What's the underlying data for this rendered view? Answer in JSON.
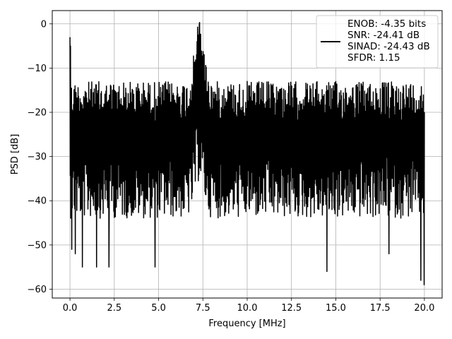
{
  "chart_data": {
    "type": "line",
    "title": "",
    "xlabel": "Frequency [MHz]",
    "ylabel": "PSD [dB]",
    "xlim": [
      -1.0,
      21.0
    ],
    "ylim": [
      -62,
      3
    ],
    "xticks": [
      0.0,
      2.5,
      5.0,
      7.5,
      10.0,
      12.5,
      15.0,
      17.5,
      20.0
    ],
    "xtick_labels": [
      "0.0",
      "2.5",
      "5.0",
      "7.5",
      "10.0",
      "12.5",
      "15.0",
      "17.5",
      "20.0"
    ],
    "yticks": [
      0,
      -10,
      -20,
      -30,
      -40,
      -50,
      -60
    ],
    "ytick_labels": [
      "0",
      "−10",
      "−20",
      "−30",
      "−40",
      "−50",
      "−60"
    ],
    "grid": true,
    "legend_position": "top-right",
    "legend_entries": [
      "ENOB: -4.35 bits",
      "SNR: -24.41 dB",
      "SINAD: -24.43 dB",
      "SFDR: 1.15"
    ],
    "series": [
      {
        "color": "#000000",
        "peak": {
          "x": 7.3,
          "y": 0
        },
        "start_spike": {
          "x": 0.0,
          "y": -3
        },
        "upper_envelope_db": -15,
        "mean_db": -25,
        "lower_envelope_db": -42,
        "minimum": {
          "x": 20.0,
          "y": -59
        },
        "notable_dips": [
          {
            "x": 0.1,
            "y": -51
          },
          {
            "x": 0.3,
            "y": -52
          },
          {
            "x": 0.7,
            "y": -55
          },
          {
            "x": 1.5,
            "y": -55
          },
          {
            "x": 2.2,
            "y": -55
          },
          {
            "x": 4.8,
            "y": -55
          },
          {
            "x": 14.5,
            "y": -56
          },
          {
            "x": 18.0,
            "y": -52
          },
          {
            "x": 19.8,
            "y": -58
          }
        ]
      }
    ]
  }
}
